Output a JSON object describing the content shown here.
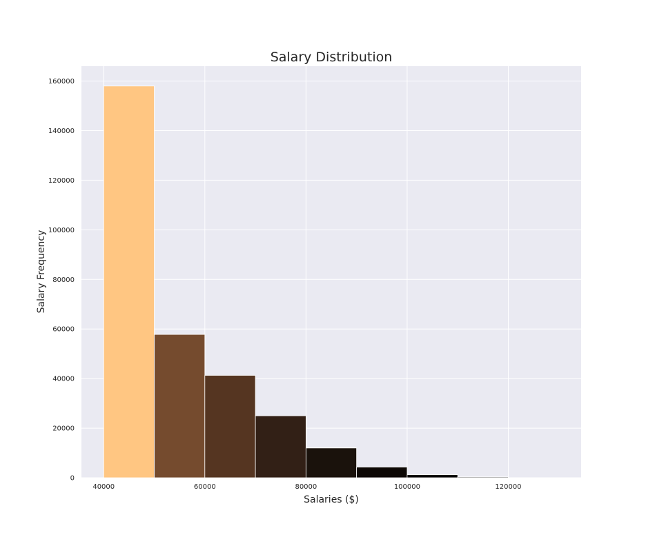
{
  "chart_data": {
    "type": "bar",
    "title": "Salary Distribution",
    "xlabel": "Salaries ($)",
    "ylabel": "Salary Frequency",
    "bin_edges": [
      40000,
      50000,
      60000,
      70000,
      80000,
      90000,
      100000,
      110000,
      120000
    ],
    "values": [
      158000,
      57800,
      41300,
      25000,
      12000,
      4300,
      1200,
      300
    ],
    "bar_colors": [
      "#FFC682",
      "#754B2E",
      "#553521",
      "#322016",
      "#1A120C",
      "#0D0805",
      "#060403",
      "#030202"
    ],
    "xlim": [
      35600,
      134400
    ],
    "ylim": [
      0,
      166000
    ],
    "xticks": [
      40000,
      60000,
      80000,
      100000,
      120000
    ],
    "xtick_labels": [
      "40000",
      "60000",
      "80000",
      "100000",
      "120000"
    ],
    "yticks": [
      0,
      20000,
      40000,
      60000,
      80000,
      100000,
      120000,
      140000,
      160000
    ],
    "ytick_labels": [
      "0",
      "20000",
      "40000",
      "60000",
      "80000",
      "100000",
      "120000",
      "140000",
      "160000"
    ],
    "grid": true,
    "background": "#EAEAF2",
    "grid_color": "#FFFFFF",
    "legend": "none"
  }
}
